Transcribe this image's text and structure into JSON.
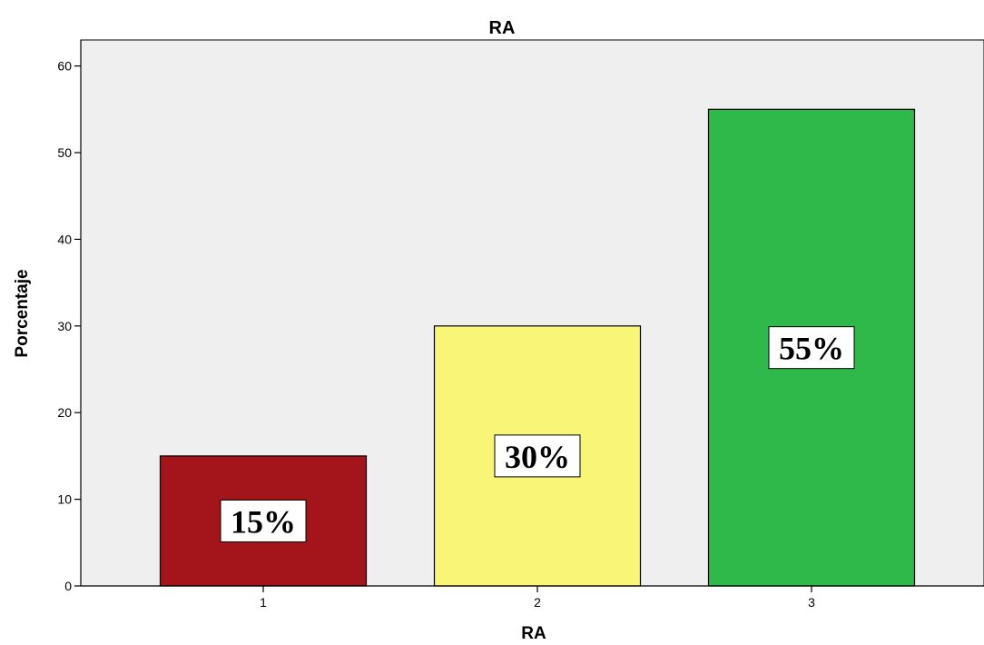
{
  "chart_data": {
    "type": "bar",
    "title": "RA",
    "xlabel": "RA",
    "ylabel": "Porcentaje",
    "categories": [
      "1",
      "2",
      "3"
    ],
    "values": [
      15,
      30,
      55
    ],
    "data_labels": [
      "15%",
      "30%",
      "55%"
    ],
    "yticks": [
      "0",
      "10",
      "20",
      "30",
      "40",
      "50",
      "60"
    ],
    "ylim": [
      0,
      63
    ],
    "grid": false,
    "colors": [
      "#a3151a",
      "#f9f577",
      "#2eb94a"
    ],
    "plot_background": "#efefef"
  }
}
